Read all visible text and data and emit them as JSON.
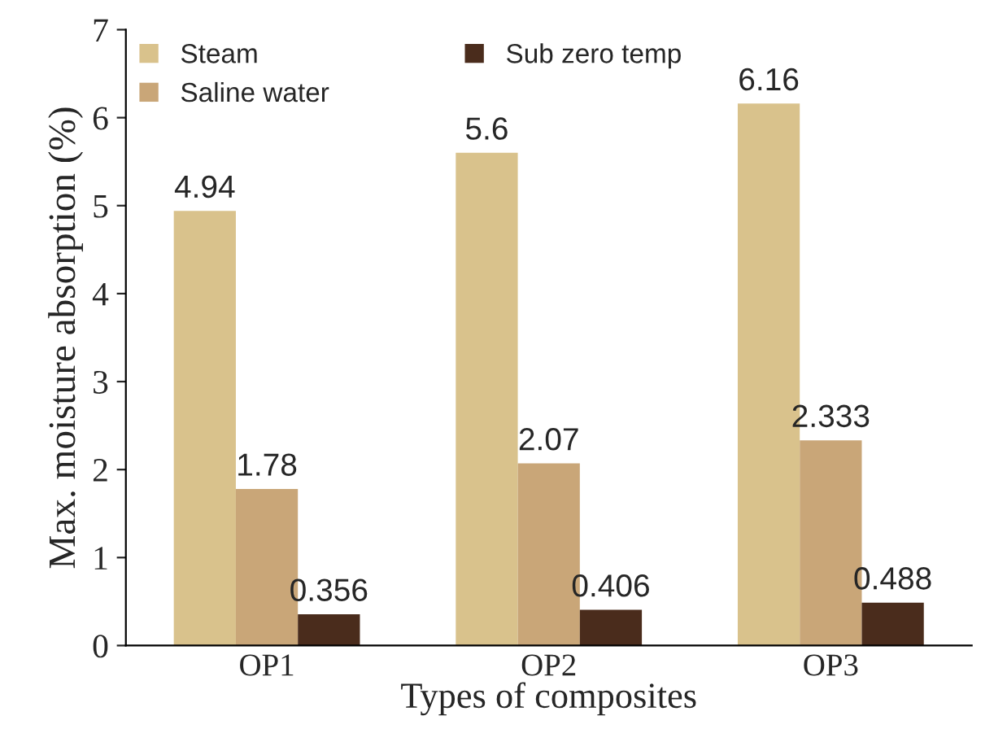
{
  "chart_data": {
    "type": "bar",
    "xlabel": "Types of composites",
    "ylabel": "Max. moisture absorption (%)",
    "categories": [
      "OP1",
      "OP2",
      "OP3"
    ],
    "series": [
      {
        "name": "Steam",
        "color": "#d9c28c",
        "values": [
          4.94,
          5.6,
          6.16
        ]
      },
      {
        "name": "Saline water",
        "color": "#c9a678",
        "values": [
          1.78,
          2.07,
          2.333
        ]
      },
      {
        "name": "Sub zero temp",
        "color": "#4a2c1c",
        "values": [
          0.356,
          0.406,
          0.488
        ]
      }
    ],
    "ylim": [
      0,
      7
    ],
    "yticks": [
      0,
      1,
      2,
      3,
      4,
      5,
      6,
      7
    ],
    "grid": false,
    "legend": "top left",
    "data_labels": true
  }
}
